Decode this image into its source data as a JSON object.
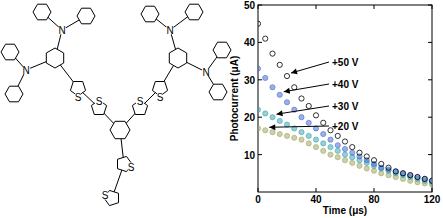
{
  "structure": {
    "atoms": [
      "N",
      "N",
      "N",
      "N",
      "S",
      "S",
      "S",
      "S",
      "S",
      "S"
    ]
  },
  "chart_data": {
    "type": "scatter",
    "x_label": "Time (μs)",
    "y_label": "Photocurrent (μA)",
    "x": [
      0,
      5,
      10,
      15,
      20,
      25,
      30,
      35,
      40,
      45,
      50,
      55,
      60,
      65,
      70,
      75,
      80,
      85,
      90,
      95,
      100,
      105,
      110,
      115,
      120
    ],
    "series": [
      {
        "name": "+50 V",
        "color": "#000000",
        "marker": "open_circle",
        "values": [
          45,
          41,
          37,
          34,
          31,
          28,
          25,
          23,
          20.5,
          18.5,
          16.5,
          15,
          13.5,
          12,
          10.5,
          9.5,
          8.5,
          7.5,
          6.5,
          5.5,
          5,
          4.5,
          4,
          3.5,
          3
        ]
      },
      {
        "name": "+40 V",
        "color": "#4a6fd0",
        "marker": "circle",
        "values": [
          33,
          30.5,
          28,
          26,
          24,
          22,
          20,
          18.5,
          17,
          15.5,
          14,
          12.5,
          11.5,
          10.5,
          9.5,
          8.5,
          7.5,
          6.5,
          6,
          5.5,
          5,
          4.5,
          4,
          3.5,
          3
        ]
      },
      {
        "name": "+30 V",
        "color": "#3fa8b4",
        "marker": "circle",
        "values": [
          22,
          21,
          20,
          19,
          18,
          17,
          16,
          15,
          14,
          13,
          12,
          11,
          10,
          9.3,
          8.5,
          7.8,
          7,
          6.3,
          5.7,
          5,
          4.5,
          4,
          3.5,
          3,
          2.6
        ]
      },
      {
        "name": "+20 V",
        "color": "#a4a866",
        "marker": "circle",
        "values": [
          17,
          16.5,
          16,
          15.5,
          15,
          14.5,
          14,
          13,
          12,
          11,
          10,
          9.3,
          8.5,
          7.8,
          7,
          6.3,
          5.7,
          5,
          4.5,
          4,
          3.5,
          3,
          2.6,
          2.3,
          2
        ]
      }
    ],
    "xlim": [
      0,
      120
    ],
    "xticks": [
      0,
      40,
      80,
      120
    ],
    "ylim": [
      0,
      50
    ],
    "yticks": [
      10,
      20,
      30,
      40,
      50
    ]
  }
}
